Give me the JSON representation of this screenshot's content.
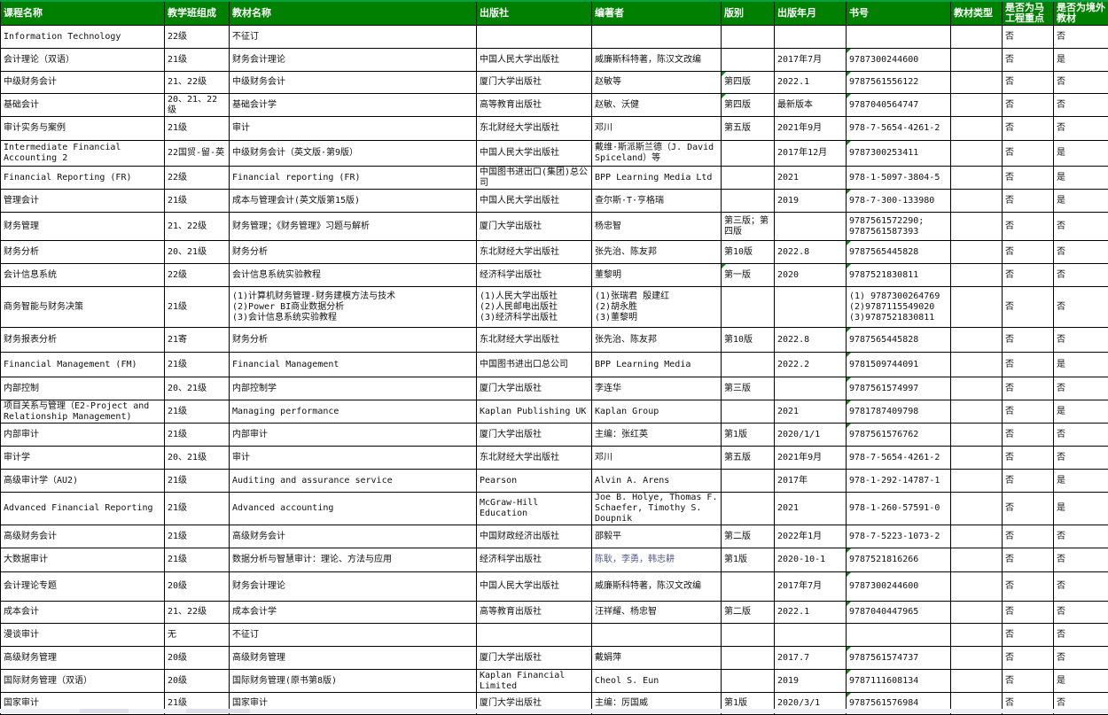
{
  "colors": {
    "header_bg": "#008000",
    "header_text": "#ffffff",
    "grid": "#000000",
    "note_marker": "#0a8a0a"
  },
  "headers": [
    "课程名称",
    "教学班组成",
    "教材名称",
    "出版社",
    "编著者",
    "版别",
    "出版年月",
    "书号",
    "教材类型",
    "是否为马工程重点",
    "是否为境外教材"
  ],
  "rows": [
    [
      "Information Technology",
      "22级",
      "不征订",
      "",
      "",
      "",
      "",
      "",
      "",
      "否",
      "否"
    ],
    [
      "会计理论（双语）",
      "21级",
      "财务会计理论",
      "中国人民大学出版社",
      "威廉斯科特著，陈汉文改编",
      "",
      "2017年7月",
      "9787300244600",
      "",
      "否",
      "是"
    ],
    [
      "中级财务会计",
      "21、22级",
      "中级财务会计",
      "厦门大学出版社",
      "赵敏等",
      "第四版",
      "2022.1",
      "9787561556122",
      "",
      "否",
      "否"
    ],
    [
      "基础会计",
      "20、21、22级",
      "基础会计学",
      "高等教育出版社",
      "赵敏、沃健",
      "第四版",
      "最新版本",
      "9787040564747",
      "",
      "否",
      "否"
    ],
    [
      "审计实务与案例",
      "21级",
      "审计",
      "东北财经大学出版社",
      "邓川",
      "第五版",
      "2021年9月",
      "978-7-5654-4261-2",
      "",
      "否",
      "否"
    ],
    [
      "Intermediate Financial Accounting 2",
      "22国贸-留-英",
      "中级财务会计（英文版·第9版）",
      "中国人民大学出版社",
      "戴维·斯派斯兰德（J. David Spiceland）等",
      "",
      "2017年12月",
      "9787300253411",
      "",
      "否",
      "是"
    ],
    [
      "Financial Reporting (FR)",
      "22级",
      "Financial reporting (FR)",
      "中国图书进出口(集团)总公司",
      "BPP Learning Media Ltd",
      "",
      "2021",
      "978-1-5097-3804-5",
      "",
      "否",
      "是"
    ],
    [
      "管理会计",
      "21级",
      "成本与管理会计(英文版第15版)",
      "中国人民大学出版社",
      "查尔斯·T·亨格瑞",
      "",
      "2019",
      " 978-7-300-133980",
      "",
      "否",
      "是"
    ],
    [
      "财务管理",
      "21、22级",
      "财务管理；《财务管理》习题与解析",
      "厦门大学出版社",
      "杨忠智",
      "第三版；第四版",
      "",
      "9787561572290;\n9787561587393",
      "",
      "否",
      "否"
    ],
    [
      "财务分析",
      "20、21级",
      "财务分析",
      "东北财经大学出版社",
      "张先治、陈友邦",
      "第10版",
      "2022.8",
      "9787565445828",
      "",
      "否",
      "否"
    ],
    [
      "会计信息系统",
      "22级",
      "会计信息系统实验教程",
      "经济科学出版社",
      "董黎明",
      "第一版",
      "2020",
      "9787521830811",
      "",
      "否",
      "否"
    ],
    [
      "商务智能与财务决策",
      "21级",
      "(1)计算机财务管理-财务建模方法与技术\n(2)Power BI商业数据分析\n(3)会计信息系统实验教程",
      "(1)人民大学出版社\n(2)人民邮电出版社\n(3)经济科学出版社",
      "(1)张瑞君  殷建红\n(2)胡永胜\n(3)董黎明",
      "",
      "",
      "(1) 9787300264769\n(2)9787115549020\n(3)9787521830811",
      "",
      "否",
      "否"
    ],
    [
      "财务报表分析",
      "21寄",
      "财务分析",
      "东北财经大学出版社",
      "张先治、陈友邦",
      "第10版",
      "2022.8",
      "9787565445828",
      "",
      "否",
      "否"
    ],
    [
      "Financial  Management (FM)",
      "21级",
      "Financial Management",
      "中国图书进出口总公司",
      "BPP  Learning  Media",
      "",
      "2022.2",
      "9781509744091",
      "",
      "否",
      "是"
    ],
    [
      "内部控制",
      "20、21级",
      "内部控制学",
      "厦门大学出版社",
      "李连华",
      "第三版",
      "",
      "9787561574997",
      "",
      "否",
      "否"
    ],
    [
      "项目关系与管理（E2-Project and Relationship Management)",
      "21级",
      "Managing performance",
      "Kaplan Publishing UK",
      "Kaplan Group",
      "",
      "2021",
      "9781787409798",
      "",
      "否",
      "是"
    ],
    [
      "内部审计",
      "21级",
      "内部审计",
      "厦门大学出版社",
      "主编：张红英",
      "第1版",
      "2020/1/1",
      "9787561576762",
      "",
      "否",
      "否"
    ],
    [
      "审计学",
      "20、21级",
      "审计",
      "东北财经大学出版社",
      "邓川",
      "第五版",
      "2021年9月",
      "978-7-5654-4261-2",
      "",
      "否",
      "否"
    ],
    [
      "高级审计学（AU2)",
      "21级",
      "Auditing and assurance service",
      "Pearson",
      "Alvin A. Arens",
      "",
      "2017年",
      "978-1-292-14787-1",
      "",
      "否",
      "是"
    ],
    [
      "Advanced Financial Reporting",
      "21级",
      "Advanced accounting",
      "McGraw-Hill Education",
      "Joe B. Holye, Thomas F. Schaefer, Timothy S. Doupnik",
      "",
      "2021",
      "978-1-260-57591-0",
      "",
      "否",
      "是"
    ],
    [
      "高级财务会计",
      "21级",
      "高级财务会计",
      "中国财政经济出版社",
      "邵毅平",
      "第二版",
      "2022年1月",
      "978-7-5223-1073-2",
      "",
      "否",
      "否"
    ],
    [
      "大数据审计",
      "21级",
      "数据分析与智慧审计：理论、方法与应用",
      "经济科学出版社",
      "陈耿，李勇，韩志耕",
      "第1版",
      "2020-10-1",
      "9787521816266",
      "",
      "否",
      "否"
    ],
    [
      "会计理论专题",
      "20级",
      "财务会计理论",
      "中国人民大学出版社",
      "威廉斯科特著，陈汉文改编",
      "",
      "2017年7月",
      "9787300244600",
      "",
      "否",
      "否"
    ],
    [
      "成本会计",
      "21、22级",
      "成本会计学",
      "高等教育出版社",
      "汪祥耀、杨忠智",
      "第二版",
      "2022.1",
      "9787040447965",
      "",
      "否",
      "否"
    ],
    [
      "漫谈审计",
      "无",
      "不征订",
      "",
      "",
      "",
      "",
      "",
      "",
      "否",
      "否"
    ],
    [
      "高级财务管理",
      "20级",
      "高级财务管理",
      "厦门大学出版社",
      "戴娟萍",
      "",
      "2017.7",
      "9787561574737",
      "",
      "否",
      "否"
    ],
    [
      "国际财务管理（双语）",
      "20级",
      "国际财务管理(原书第8版)",
      "Kaplan Financial Limited",
      "Cheol S. Eun",
      "",
      "2019",
      "9787111608134",
      "",
      "否",
      "是"
    ],
    [
      "国家审计",
      "21级",
      "国家审计",
      "厦门大学出版社",
      "主编：厉国威",
      "第1版",
      "2020/3/1",
      "9787561576984",
      "",
      "否",
      "否"
    ]
  ]
}
